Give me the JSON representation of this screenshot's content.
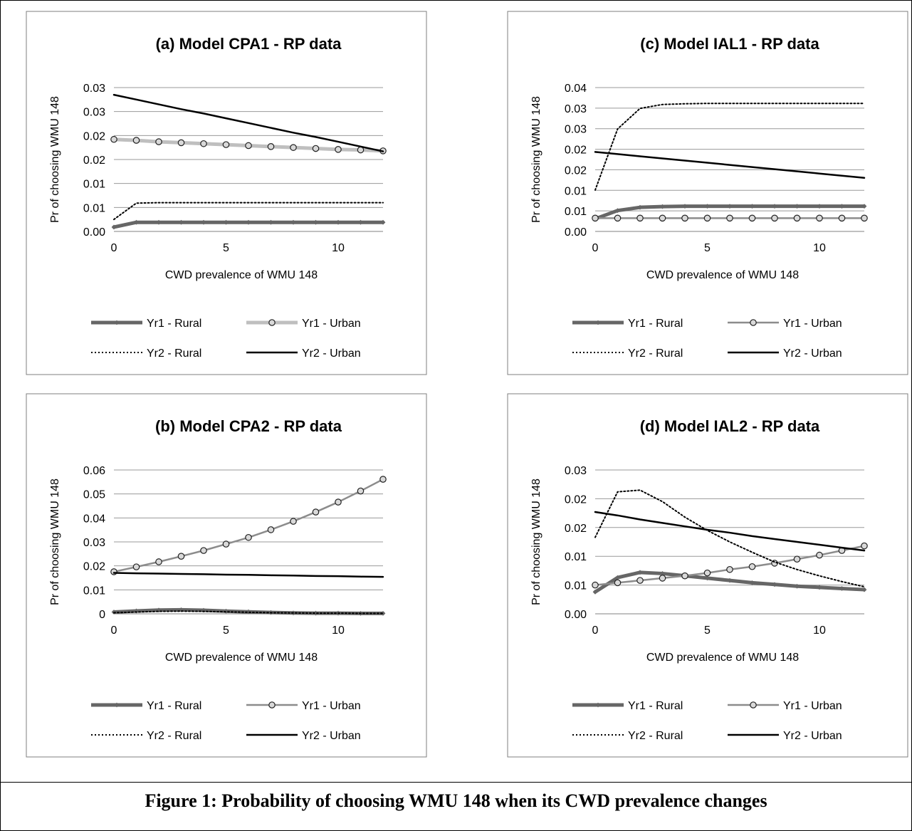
{
  "caption": "Figure 1: Probability of choosing WMU 148 when its CWD prevalence changes",
  "legend_labels": [
    "Yr1 - Rural",
    "Yr1 - Urban",
    "Yr2 - Rural",
    "Yr2 - Urban"
  ],
  "colors": {
    "yr1_rural": "#666666",
    "yr1_urban_a": "#bfbfbf",
    "yr1_urban_other": "#8c8c8c",
    "yr2_rural": "#000000",
    "yr2_urban": "#000000",
    "grid": "#999999",
    "panel_border": "#7f7f7f"
  },
  "chart_data": [
    {
      "panel": "a",
      "type": "line",
      "title": "(a) Model CPA1 - RP data",
      "xlabel": "CWD prevalence of WMU 148",
      "ylabel": "Pr of choosing WMU 148",
      "x_ticks": [
        "0",
        "5",
        "10"
      ],
      "y_ticks": [
        "0.00",
        "0.01",
        "0.01",
        "0.02",
        "0.02",
        "0.03",
        "0.03"
      ],
      "xlim": [
        0,
        12
      ],
      "ylim": [
        0,
        0.03
      ],
      "legend_position": "bottom",
      "x": [
        0,
        1,
        2,
        3,
        4,
        5,
        6,
        7,
        8,
        9,
        10,
        11,
        12
      ],
      "series": [
        {
          "name": "Yr1 - Rural",
          "style": "rural1",
          "values": [
            0.0009,
            0.0019,
            0.0019,
            0.0019,
            0.0019,
            0.0019,
            0.0019,
            0.0019,
            0.0019,
            0.0019,
            0.0019,
            0.0019,
            0.0019
          ]
        },
        {
          "name": "Yr1 - Urban",
          "style": "urban1",
          "values": [
            0.0192,
            0.019,
            0.0187,
            0.0185,
            0.0183,
            0.0181,
            0.0179,
            0.0177,
            0.0175,
            0.0173,
            0.0171,
            0.017,
            0.0168
          ]
        },
        {
          "name": "Yr2 - Rural",
          "style": "rural2",
          "values": [
            0.0025,
            0.0059,
            0.006,
            0.006,
            0.006,
            0.006,
            0.006,
            0.006,
            0.006,
            0.006,
            0.006,
            0.006,
            0.006
          ]
        },
        {
          "name": "Yr2 - Urban",
          "style": "urban2",
          "values": [
            0.0285,
            0.0275,
            0.0265,
            0.0255,
            0.0246,
            0.0236,
            0.0226,
            0.0216,
            0.0206,
            0.0197,
            0.0187,
            0.0177,
            0.0167
          ]
        }
      ]
    },
    {
      "panel": "b",
      "type": "line",
      "title": "(b) Model CPA2 - RP data",
      "xlabel": "CWD prevalence of WMU 148",
      "ylabel": "Pr of choosing WMU 148",
      "x_ticks": [
        "0",
        "5",
        "10"
      ],
      "y_ticks": [
        "0",
        "0.01",
        "0.02",
        "0.03",
        "0.04",
        "0.05",
        "0.06"
      ],
      "xlim": [
        0,
        12
      ],
      "ylim": [
        0,
        0.065
      ],
      "legend_position": "bottom",
      "x": [
        0,
        1,
        2,
        3,
        4,
        5,
        6,
        7,
        8,
        9,
        10,
        11,
        12
      ],
      "series": [
        {
          "name": "Yr1 - Rural",
          "style": "rural1",
          "values": [
            0.0008,
            0.0013,
            0.0017,
            0.0018,
            0.0016,
            0.0012,
            0.0009,
            0.0006,
            0.0004,
            0.0003,
            0.0003,
            0.0002,
            0.0002
          ]
        },
        {
          "name": "Yr1 - Urban",
          "style": "urban1",
          "values": [
            0.019,
            0.0212,
            0.0235,
            0.026,
            0.0286,
            0.0315,
            0.0345,
            0.038,
            0.0418,
            0.046,
            0.0505,
            0.0555,
            0.0608
          ]
        },
        {
          "name": "Yr2 - Rural",
          "style": "rural2",
          "values": [
            0.0005,
            0.0008,
            0.0011,
            0.0012,
            0.0011,
            0.0009,
            0.0007,
            0.0005,
            0.0004,
            0.0003,
            0.0003,
            0.0002,
            0.0002
          ]
        },
        {
          "name": "Yr2 - Urban",
          "style": "urban2",
          "values": [
            0.0185,
            0.0183,
            0.0182,
            0.018,
            0.0179,
            0.0177,
            0.0176,
            0.0174,
            0.0173,
            0.0171,
            0.017,
            0.0168,
            0.0167
          ]
        }
      ]
    },
    {
      "panel": "c",
      "type": "line",
      "title": "(c) Model IAL1 - RP data",
      "xlabel": "CWD prevalence of WMU 148",
      "ylabel": "Pr of choosing WMU 148",
      "x_ticks": [
        "0",
        "5",
        "10"
      ],
      "y_ticks": [
        "0.00",
        "0.01",
        "0.01",
        "0.02",
        "0.02",
        "0.03",
        "0.03",
        "0.04"
      ],
      "xlim": [
        0,
        12
      ],
      "ylim": [
        0,
        0.04
      ],
      "legend_position": "bottom",
      "x": [
        0,
        1,
        2,
        3,
        4,
        5,
        6,
        7,
        8,
        9,
        10,
        11,
        12
      ],
      "series": [
        {
          "name": "Yr1 - Rural",
          "style": "rural1",
          "values": [
            0.0035,
            0.0058,
            0.0067,
            0.0069,
            0.007,
            0.007,
            0.007,
            0.007,
            0.007,
            0.007,
            0.007,
            0.007,
            0.007
          ]
        },
        {
          "name": "Yr1 - Urban",
          "style": "urban1",
          "values": [
            0.0037,
            0.0037,
            0.0037,
            0.0037,
            0.0037,
            0.0037,
            0.0037,
            0.0037,
            0.0037,
            0.0037,
            0.0037,
            0.0037,
            0.0037
          ]
        },
        {
          "name": "Yr2 - Rural",
          "style": "rural2",
          "values": [
            0.0115,
            0.0285,
            0.0342,
            0.0353,
            0.0355,
            0.0356,
            0.0356,
            0.0356,
            0.0356,
            0.0356,
            0.0356,
            0.0356,
            0.0356
          ]
        },
        {
          "name": "Yr2 - Urban",
          "style": "urban2",
          "values": [
            0.0221,
            0.0215,
            0.0209,
            0.0203,
            0.0197,
            0.0191,
            0.0185,
            0.0179,
            0.0173,
            0.0167,
            0.0161,
            0.0155,
            0.0149
          ]
        }
      ]
    },
    {
      "panel": "d",
      "type": "line",
      "title": "(d) Model IAL2 - RP data",
      "xlabel": "CWD prevalence of WMU 148",
      "ylabel": "Pr of choosing WMU 148",
      "x_ticks": [
        "0",
        "5",
        "10"
      ],
      "y_ticks": [
        "0.00",
        "0.01",
        "0.01",
        "0.02",
        "0.02",
        "0.03"
      ],
      "xlim": [
        0,
        12
      ],
      "ylim": [
        0,
        0.025
      ],
      "legend_position": "bottom",
      "x": [
        0,
        1,
        2,
        3,
        4,
        5,
        6,
        7,
        8,
        9,
        10,
        11,
        12
      ],
      "series": [
        {
          "name": "Yr1 - Rural",
          "style": "rural1",
          "values": [
            0.0038,
            0.0063,
            0.0072,
            0.007,
            0.0066,
            0.0062,
            0.0058,
            0.0054,
            0.0051,
            0.0048,
            0.0046,
            0.0044,
            0.0042
          ]
        },
        {
          "name": "Yr1 - Urban",
          "style": "urban1",
          "values": [
            0.005,
            0.0054,
            0.0058,
            0.0062,
            0.0066,
            0.0071,
            0.0077,
            0.0082,
            0.0088,
            0.0095,
            0.0102,
            0.011,
            0.0118
          ]
        },
        {
          "name": "Yr2 - Rural",
          "style": "rural2",
          "values": [
            0.0133,
            0.0212,
            0.0215,
            0.0195,
            0.0168,
            0.0145,
            0.0125,
            0.0107,
            0.009,
            0.0077,
            0.0066,
            0.0056,
            0.0047
          ]
        },
        {
          "name": "Yr2 - Urban",
          "style": "urban2",
          "values": [
            0.0177,
            0.0171,
            0.0164,
            0.0158,
            0.0152,
            0.0146,
            0.0141,
            0.0135,
            0.013,
            0.0125,
            0.012,
            0.0115,
            0.011
          ]
        }
      ]
    }
  ]
}
